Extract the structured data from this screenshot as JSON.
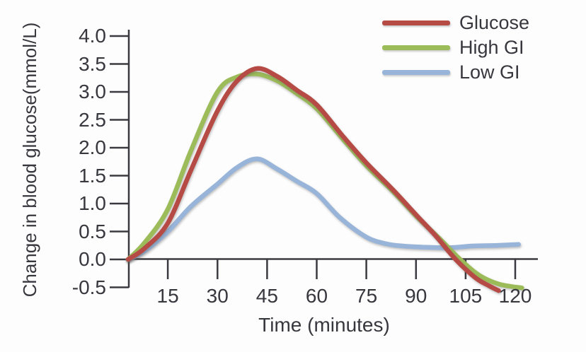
{
  "chart_data": {
    "type": "line",
    "title": "",
    "xlabel": "Time (minutes)",
    "ylabel": "Change in blood glucose(mmol/L)",
    "xlim": [
      0,
      126
    ],
    "ylim": [
      -0.6,
      4.15
    ],
    "grid": false,
    "legend_position": "top-right",
    "axis_color": "#3a3a40",
    "text_color": "#37373e",
    "x_ticks": [
      {
        "v": 15,
        "label": "15"
      },
      {
        "v": 30,
        "label": "30"
      },
      {
        "v": 45,
        "label": "45"
      },
      {
        "v": 60,
        "label": "60"
      },
      {
        "v": 75,
        "label": "75"
      },
      {
        "v": 90,
        "label": "90"
      },
      {
        "v": 105,
        "label": "105"
      },
      {
        "v": 120,
        "label": "120"
      }
    ],
    "y_ticks": [
      {
        "v": 4.0,
        "label": "4.0"
      },
      {
        "v": 3.5,
        "label": "3.5"
      },
      {
        "v": 3.0,
        "label": "3.0"
      },
      {
        "v": 2.5,
        "label": "2.5"
      },
      {
        "v": 2.0,
        "label": "2.0"
      },
      {
        "v": 1.5,
        "label": "1.5"
      },
      {
        "v": 1.0,
        "label": "1.0"
      },
      {
        "v": 0.5,
        "label": "0.5"
      },
      {
        "v": 0.0,
        "label": "0.0"
      },
      {
        "v": -0.5,
        "label": "-0.5"
      }
    ],
    "series": [
      {
        "name": "Glucose",
        "color": "#b64a45",
        "points": [
          [
            3,
            0
          ],
          [
            8,
            0.2
          ],
          [
            15,
            0.65
          ],
          [
            22,
            1.6
          ],
          [
            30,
            2.66
          ],
          [
            36,
            3.2
          ],
          [
            42,
            3.42
          ],
          [
            48,
            3.28
          ],
          [
            54,
            3.03
          ],
          [
            60,
            2.77
          ],
          [
            68,
            2.2
          ],
          [
            75,
            1.73
          ],
          [
            83,
            1.25
          ],
          [
            90,
            0.8
          ],
          [
            96,
            0.42
          ],
          [
            102,
            0.0
          ],
          [
            108,
            -0.33
          ],
          [
            112,
            -0.47
          ],
          [
            115,
            -0.56
          ]
        ]
      },
      {
        "name": "High GI",
        "color": "#9cbb59",
        "points": [
          [
            3,
            0
          ],
          [
            8,
            0.3
          ],
          [
            15,
            0.9
          ],
          [
            22,
            1.95
          ],
          [
            30,
            3.0
          ],
          [
            36,
            3.27
          ],
          [
            42,
            3.32
          ],
          [
            48,
            3.2
          ],
          [
            54,
            2.97
          ],
          [
            60,
            2.7
          ],
          [
            68,
            2.15
          ],
          [
            75,
            1.68
          ],
          [
            83,
            1.22
          ],
          [
            90,
            0.78
          ],
          [
            97,
            0.38
          ],
          [
            103,
            0.02
          ],
          [
            109,
            -0.28
          ],
          [
            115,
            -0.44
          ],
          [
            122,
            -0.51
          ]
        ]
      },
      {
        "name": "Low GI",
        "color": "#98b4d8",
        "points": [
          [
            3,
            0
          ],
          [
            8,
            0.15
          ],
          [
            15,
            0.5
          ],
          [
            22,
            0.95
          ],
          [
            30,
            1.35
          ],
          [
            36,
            1.65
          ],
          [
            42,
            1.8
          ],
          [
            48,
            1.62
          ],
          [
            54,
            1.4
          ],
          [
            60,
            1.18
          ],
          [
            67,
            0.75
          ],
          [
            75,
            0.4
          ],
          [
            81,
            0.28
          ],
          [
            86,
            0.24
          ],
          [
            92,
            0.22
          ],
          [
            100,
            0.21
          ],
          [
            107,
            0.24
          ],
          [
            114,
            0.25
          ],
          [
            121,
            0.27
          ]
        ]
      }
    ]
  }
}
